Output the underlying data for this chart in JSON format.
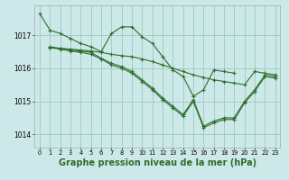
{
  "background_color": "#cce8e8",
  "grid_color": "#99ccbb",
  "line_color": "#2d6e2d",
  "xlabel": "Graphe pression niveau de la mer (hPa)",
  "xlabel_fontsize": 7.0,
  "ylim": [
    1013.6,
    1017.9
  ],
  "xlim": [
    -0.5,
    23.5
  ],
  "yticks": [
    1014,
    1015,
    1016,
    1017
  ],
  "xticks": [
    0,
    1,
    2,
    3,
    4,
    5,
    6,
    7,
    8,
    9,
    10,
    11,
    12,
    13,
    14,
    15,
    16,
    17,
    18,
    19,
    20,
    21,
    22,
    23
  ],
  "series": [
    {
      "x": [
        0,
        1,
        2,
        3,
        4,
        5,
        6,
        7,
        8,
        9,
        10,
        11,
        12,
        13,
        14,
        15,
        16,
        17,
        18,
        19
      ],
      "y": [
        1017.65,
        1017.15,
        1017.05,
        1016.9,
        1016.75,
        1016.65,
        1016.5,
        1017.05,
        1017.25,
        1017.25,
        1016.95,
        1016.75,
        1016.35,
        1015.95,
        1015.75,
        1015.15,
        1015.35,
        1015.95,
        1015.9,
        1015.85
      ]
    },
    {
      "x": [
        1,
        2,
        3,
        4,
        5,
        6,
        7,
        8,
        9,
        10,
        11,
        12,
        13,
        14,
        15,
        16,
        17,
        18,
        19,
        20,
        21,
        22,
        23
      ],
      "y": [
        1016.62,
        1016.6,
        1016.58,
        1016.55,
        1016.52,
        1016.48,
        1016.42,
        1016.38,
        1016.35,
        1016.28,
        1016.2,
        1016.1,
        1016.0,
        1015.9,
        1015.8,
        1015.72,
        1015.65,
        1015.6,
        1015.55,
        1015.5,
        1015.9,
        1015.85,
        1015.8
      ]
    },
    {
      "x": [
        1,
        2,
        3,
        4,
        5,
        6,
        7,
        8,
        9,
        10,
        11,
        12,
        13,
        14,
        15,
        16,
        17,
        18,
        19,
        20,
        21,
        22,
        23
      ],
      "y": [
        1016.65,
        1016.6,
        1016.55,
        1016.52,
        1016.48,
        1016.3,
        1016.15,
        1016.05,
        1015.9,
        1015.65,
        1015.4,
        1015.1,
        1014.85,
        1014.6,
        1015.05,
        1014.25,
        1014.4,
        1014.5,
        1014.5,
        1015.0,
        1015.35,
        1015.8,
        1015.75
      ]
    },
    {
      "x": [
        1,
        2,
        3,
        4,
        5,
        6,
        7,
        8,
        9,
        10,
        11,
        12,
        13,
        14,
        15,
        16,
        17,
        18,
        19,
        20,
        21,
        22,
        23
      ],
      "y": [
        1016.62,
        1016.58,
        1016.52,
        1016.48,
        1016.42,
        1016.28,
        1016.1,
        1016.0,
        1015.85,
        1015.6,
        1015.35,
        1015.05,
        1014.8,
        1014.55,
        1015.0,
        1014.2,
        1014.35,
        1014.45,
        1014.45,
        1014.95,
        1015.3,
        1015.75,
        1015.7
      ]
    }
  ]
}
